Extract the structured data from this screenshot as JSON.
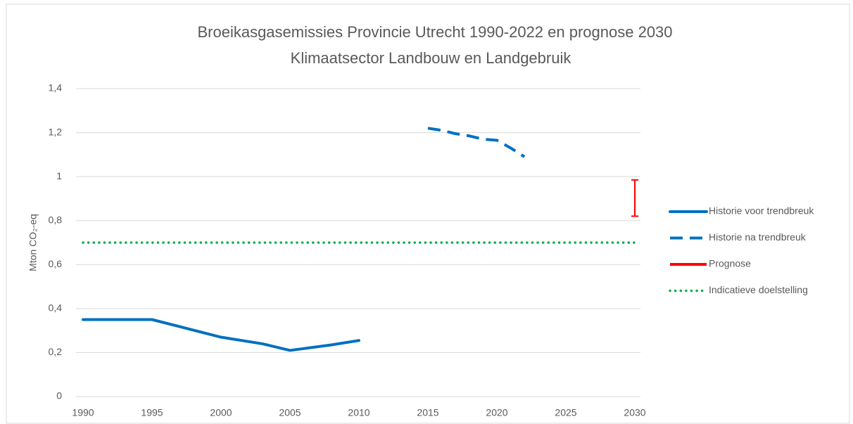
{
  "chart_data": {
    "type": "line",
    "title": "Broeikasgasemissies Provincie Utrecht 1990-2022 en prognose 2030",
    "subtitle": "Klimaatsector Landbouw en Landgebruik",
    "y_label": "Mton CO₂-eq",
    "xlim": [
      1990,
      2030
    ],
    "xticks": [
      1990,
      1995,
      2000,
      2005,
      2010,
      2015,
      2020,
      2025,
      2030
    ],
    "ylim": [
      0,
      1.4
    ],
    "yticks": [
      0,
      {
        "value": 0.2,
        "label": "0,2"
      },
      {
        "value": 0.4,
        "label": "0,4"
      },
      {
        "value": 0.6,
        "label": "0,6"
      },
      {
        "value": 0.8,
        "label": "0,8"
      },
      1,
      {
        "value": 1.2,
        "label": "1,2"
      },
      {
        "value": 1.4,
        "label": "1,4"
      }
    ],
    "grid": true,
    "legend": "right",
    "series": [
      {
        "name": "Historie voor trendbreuk",
        "color": "#0070c0",
        "style": "solid",
        "x": [
          1990,
          1995,
          2000,
          2003,
          2005,
          2008,
          2010
        ],
        "values": [
          0.35,
          0.35,
          0.27,
          0.24,
          0.21,
          0.235,
          0.255
        ]
      },
      {
        "name": "Historie na trendbreuk",
        "color": "#0070c0",
        "style": "dash",
        "x": [
          2015,
          2016,
          2017,
          2018,
          2019,
          2020,
          2021,
          2022
        ],
        "values": [
          1.22,
          1.21,
          1.195,
          1.185,
          1.17,
          1.165,
          1.13,
          1.09
        ]
      },
      {
        "name": "Prognose",
        "color": "#ff0000",
        "style": "range",
        "x": [
          2030,
          2030
        ],
        "values": [
          0.82,
          0.985
        ]
      },
      {
        "name": "Indicatieve doelstelling",
        "color": "#00b050",
        "style": "dot",
        "x": [
          1990,
          2030
        ],
        "values": [
          0.7,
          0.7
        ]
      }
    ]
  }
}
